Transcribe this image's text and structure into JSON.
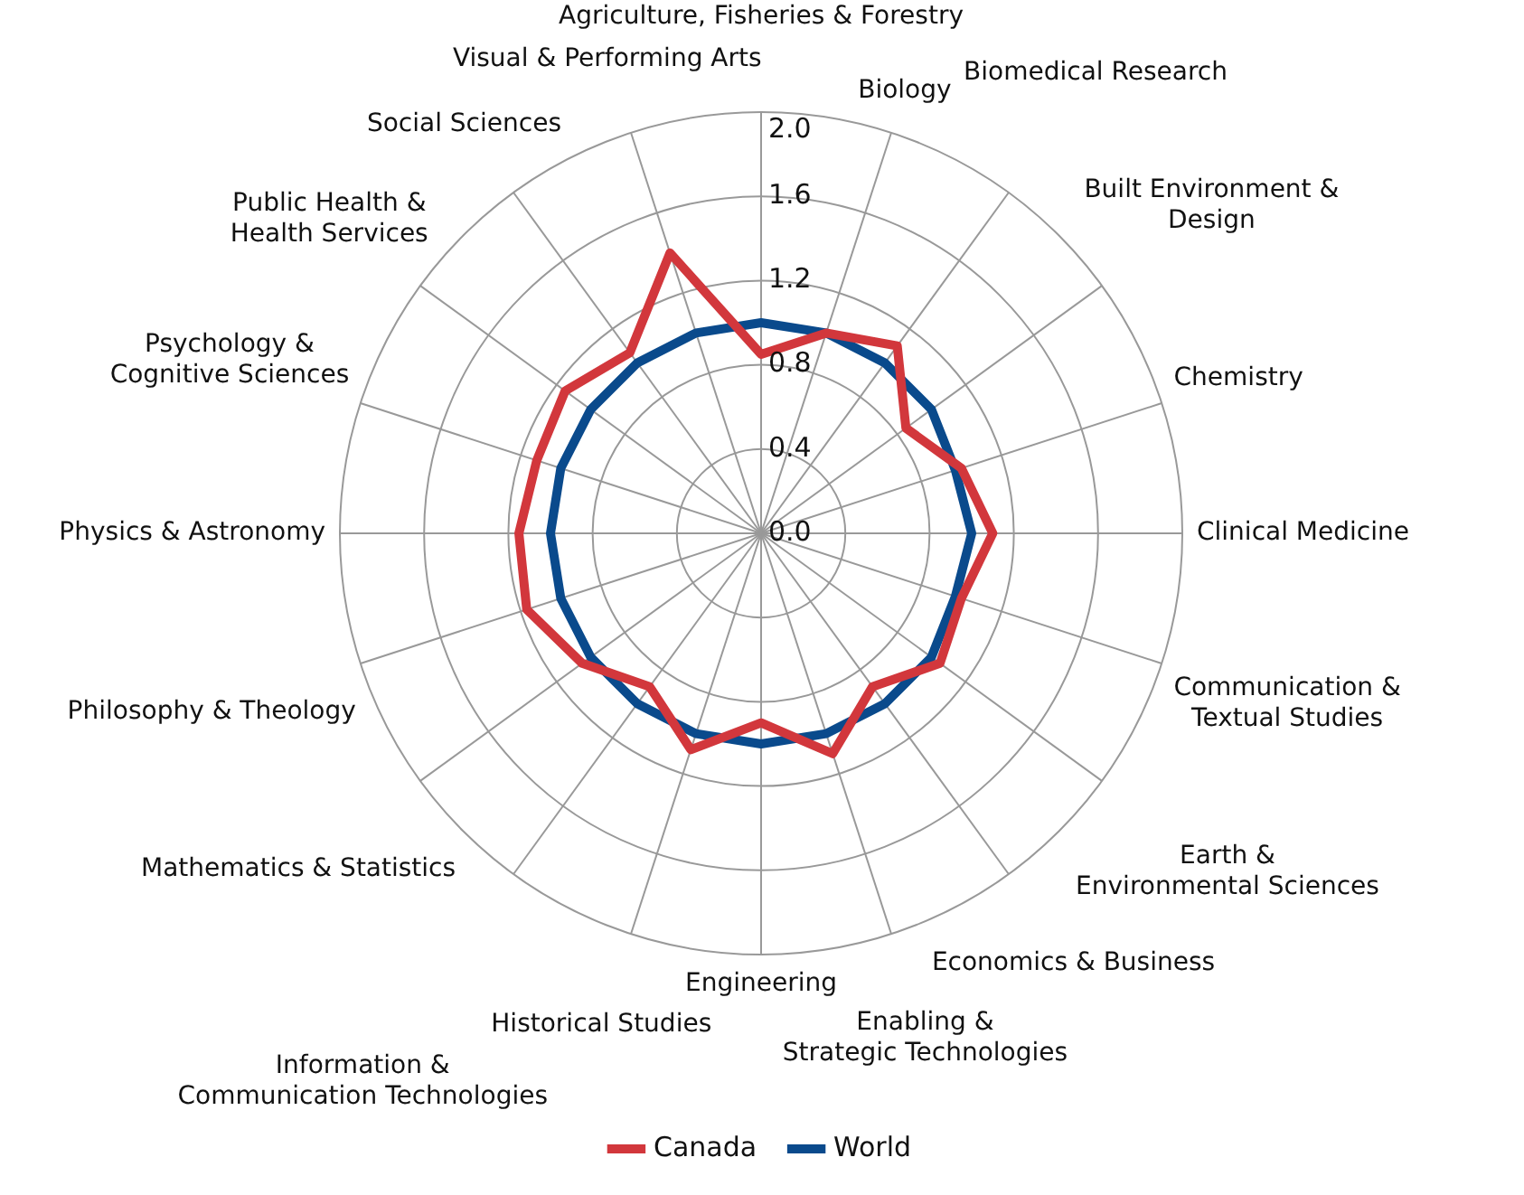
{
  "chart_data": {
    "type": "radar",
    "categories": [
      "Agriculture, Fisheries & Forestry",
      "Biology",
      "Biomedical Research",
      "Built Environment & Design",
      "Chemistry",
      "Clinical Medicine",
      "Communication & Textual Studies",
      "Earth & Environmental Sciences",
      "Economics & Business",
      "Enabling & Strategic Technologies",
      "Engineering",
      "Historical Studies",
      "Information & Communication Technologies",
      "Mathematics & Statistics",
      "Philosophy & Theology",
      "Physics & Astronomy",
      "Psychology & Cognitive Sciences",
      "Public Health & Health Services",
      "Social Sciences",
      "Visual & Performing Arts"
    ],
    "series": [
      {
        "name": "Canada",
        "color": "#d2373c",
        "values": [
          0.85,
          1.0,
          1.1,
          0.85,
          1.0,
          1.1,
          1.0,
          1.05,
          0.9,
          1.1,
          0.9,
          1.08,
          0.9,
          1.05,
          1.17,
          1.15,
          1.12,
          1.15,
          1.06,
          1.4
        ]
      },
      {
        "name": "World",
        "color": "#0a4a8c",
        "values": [
          1.0,
          1.0,
          1.0,
          1.0,
          0.97,
          1.0,
          0.97,
          1.0,
          1.0,
          1.0,
          1.0,
          1.0,
          1.0,
          1.0,
          1.0,
          1.0,
          1.0,
          1.0,
          1.0,
          1.0
        ]
      }
    ],
    "ylim": [
      0,
      2
    ],
    "yticks": [
      {
        "value": 0,
        "label": "0.0"
      },
      0.4,
      0.8,
      1.2,
      1.6,
      {
        "value": 2,
        "label": "2.0"
      }
    ],
    "grid": true,
    "legend": "bottom",
    "marker": "none",
    "line_style": "solid"
  }
}
